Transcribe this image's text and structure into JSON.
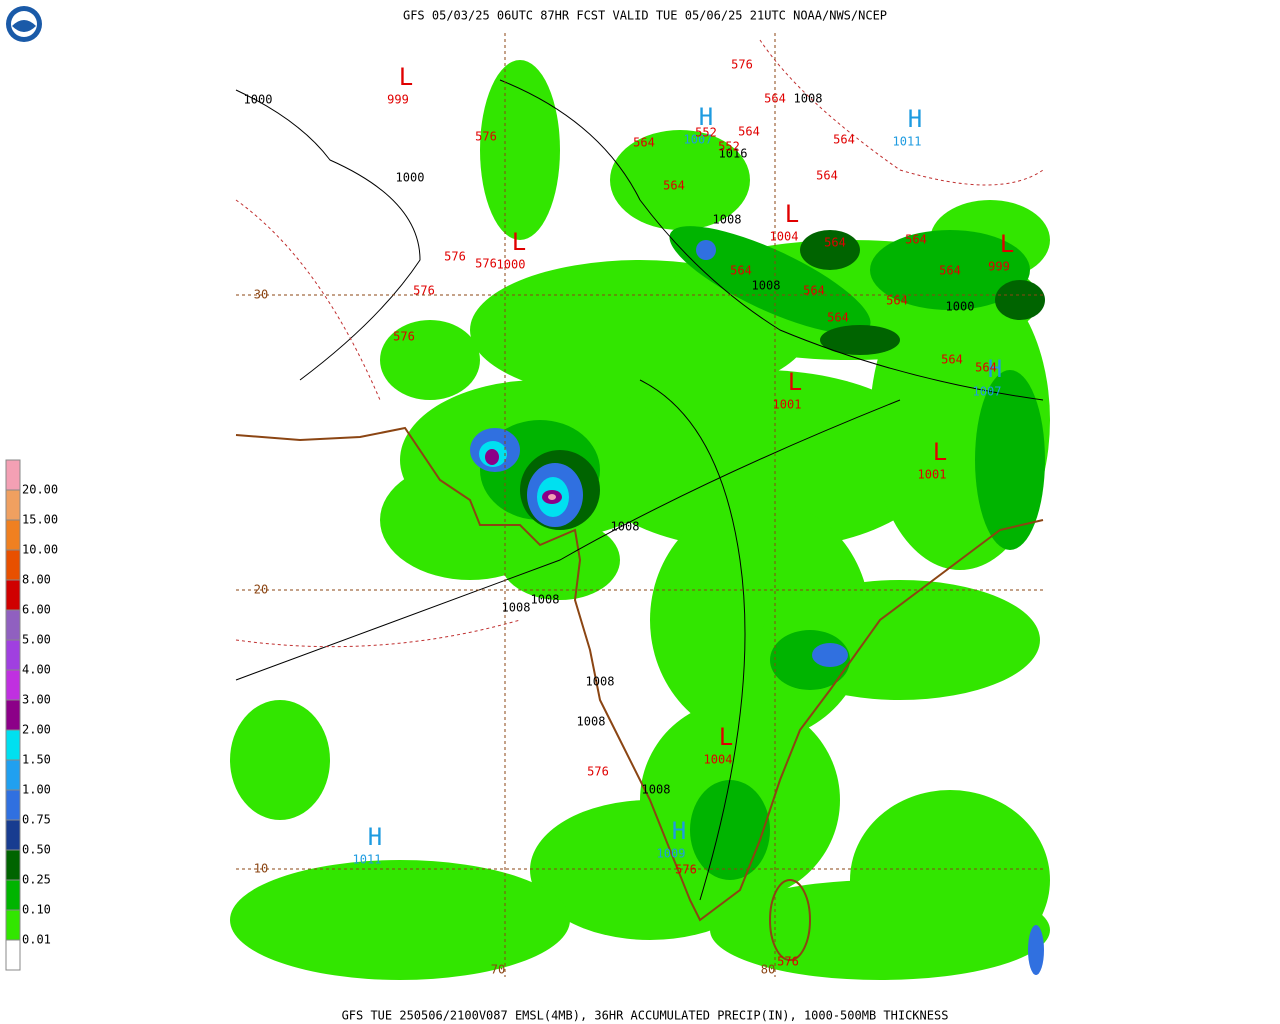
{
  "header": {
    "title": "GFS 05/03/25 06UTC 87HR FCST VALID TUE 05/06/25 21UTC NOAA/NWS/NCEP"
  },
  "footer": {
    "text": "GFS TUE 250506/2100V087 EMSL(4MB), 36HR ACCUMULATED PRECIP(IN), 1000-500MB THICKNESS"
  },
  "legend": {
    "top_color": "#f4a0b4",
    "bottom_color": "#ffffff",
    "items": [
      {
        "label": "20.00",
        "color": "#f4a0b4"
      },
      {
        "label": "15.00",
        "color": "#f0a060"
      },
      {
        "label": "10.00",
        "color": "#f08020"
      },
      {
        "label": "8.00",
        "color": "#e85000"
      },
      {
        "label": "6.00",
        "color": "#d00000"
      },
      {
        "label": "5.00",
        "color": "#9060c0"
      },
      {
        "label": "4.00",
        "color": "#a040e0"
      },
      {
        "label": "3.00",
        "color": "#c030e0"
      },
      {
        "label": "2.00",
        "color": "#8c0088"
      },
      {
        "label": "1.50",
        "color": "#00e0f0"
      },
      {
        "label": "1.00",
        "color": "#20a0f0"
      },
      {
        "label": "0.75",
        "color": "#3070e0"
      },
      {
        "label": "0.50",
        "color": "#183c90"
      },
      {
        "label": "0.25",
        "color": "#006400"
      },
      {
        "label": "0.10",
        "color": "#00b400"
      },
      {
        "label": "0.01",
        "color": "#32e600"
      }
    ]
  },
  "map": {
    "grid_labels": [
      "30",
      "20",
      "10",
      "70",
      "80"
    ],
    "pressure_centers": [
      {
        "symbol": "L",
        "value": "999"
      },
      {
        "symbol": "L",
        "value": "1000"
      },
      {
        "symbol": "H",
        "value": "1011"
      },
      {
        "symbol": "H",
        "value": "1007"
      },
      {
        "symbol": "L",
        "value": "1004"
      },
      {
        "symbol": "L",
        "value": "999"
      },
      {
        "symbol": "L",
        "value": "1001"
      },
      {
        "symbol": "L",
        "value": "1001"
      },
      {
        "symbol": "L",
        "value": "1004"
      },
      {
        "symbol": "H",
        "value": "1009"
      },
      {
        "symbol": "H",
        "value": "1011"
      },
      {
        "symbol": "H",
        "value": "1007"
      }
    ],
    "isobar_labels": [
      "1000",
      "1008",
      "1016",
      "1000",
      "1008",
      "1008",
      "1000",
      "1008",
      "1008",
      "1008",
      "1008",
      "1008",
      "1008"
    ],
    "thickness_labels": [
      "576",
      "564",
      "552",
      "564",
      "552",
      "576",
      "564",
      "564",
      "564",
      "564",
      "564",
      "564",
      "564",
      "564",
      "576",
      "576",
      "576",
      "564",
      "564",
      "564",
      "576",
      "564",
      "564",
      "576",
      "576",
      "576"
    ]
  }
}
